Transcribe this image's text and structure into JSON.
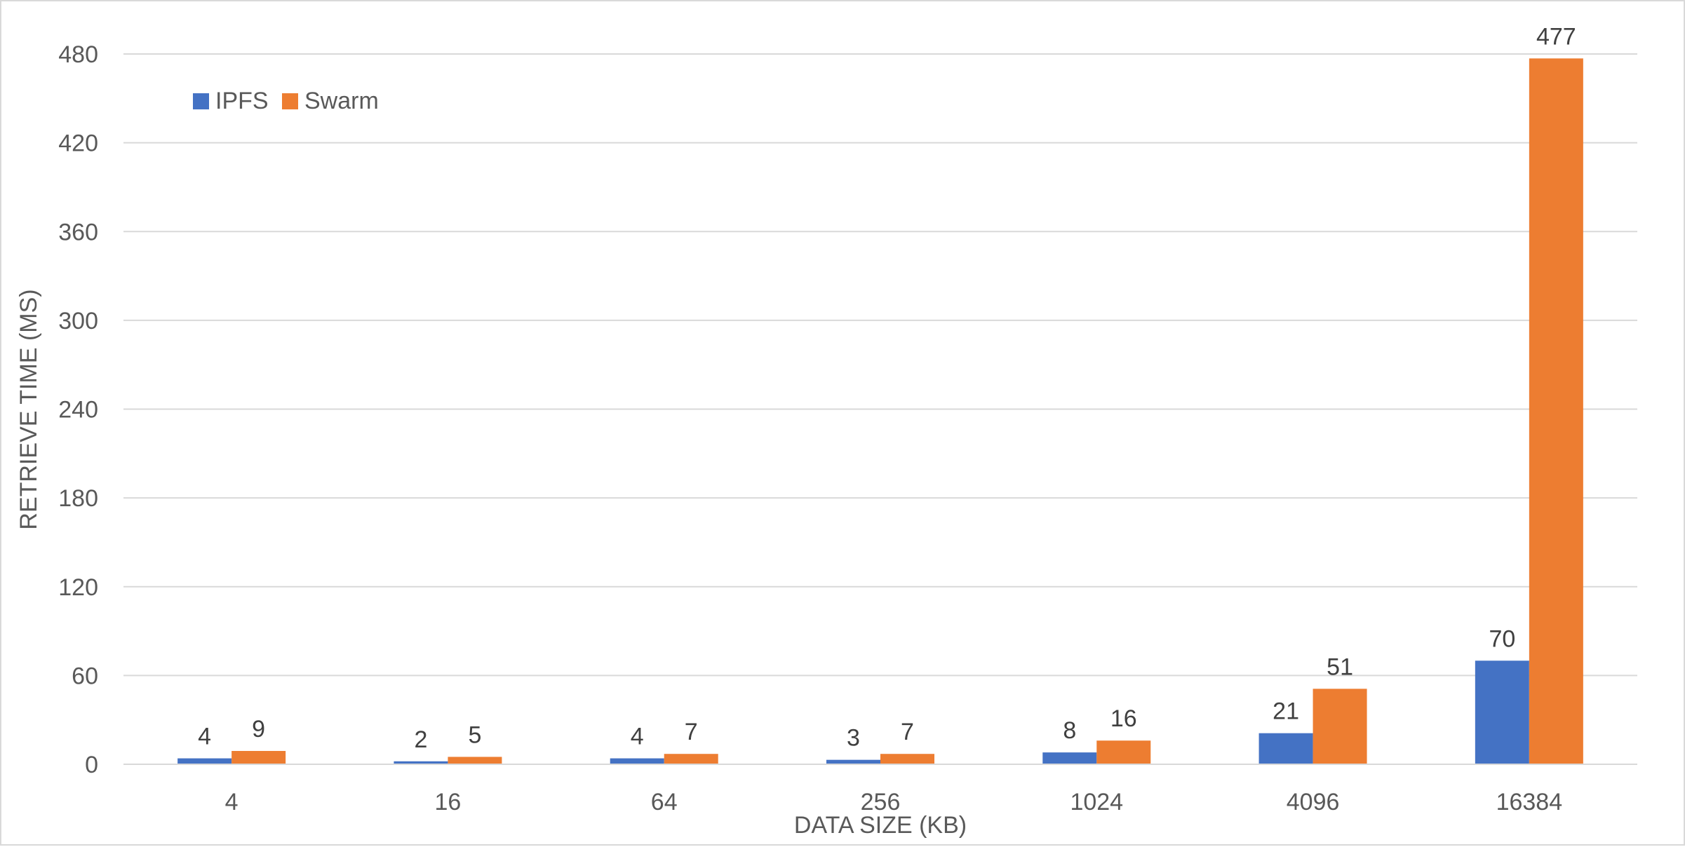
{
  "chart_data": {
    "type": "bar",
    "title": "",
    "xlabel": "DATA SIZE (KB)",
    "ylabel": "RETRIEVE TIME (MS)",
    "categories": [
      "4",
      "16",
      "64",
      "256",
      "1024",
      "4096",
      "16384"
    ],
    "series": [
      {
        "name": "IPFS",
        "color": "#4472c4",
        "values": [
          4,
          2,
          4,
          3,
          8,
          21,
          70
        ]
      },
      {
        "name": "Swarm",
        "color": "#ed7d31",
        "values": [
          9,
          5,
          7,
          7,
          16,
          51,
          477
        ]
      }
    ],
    "ylim": [
      0,
      480
    ],
    "yticks": [
      0,
      60,
      120,
      180,
      240,
      300,
      360,
      420,
      480
    ],
    "grid": true,
    "legend_position": "top-left",
    "data_labels": true
  }
}
